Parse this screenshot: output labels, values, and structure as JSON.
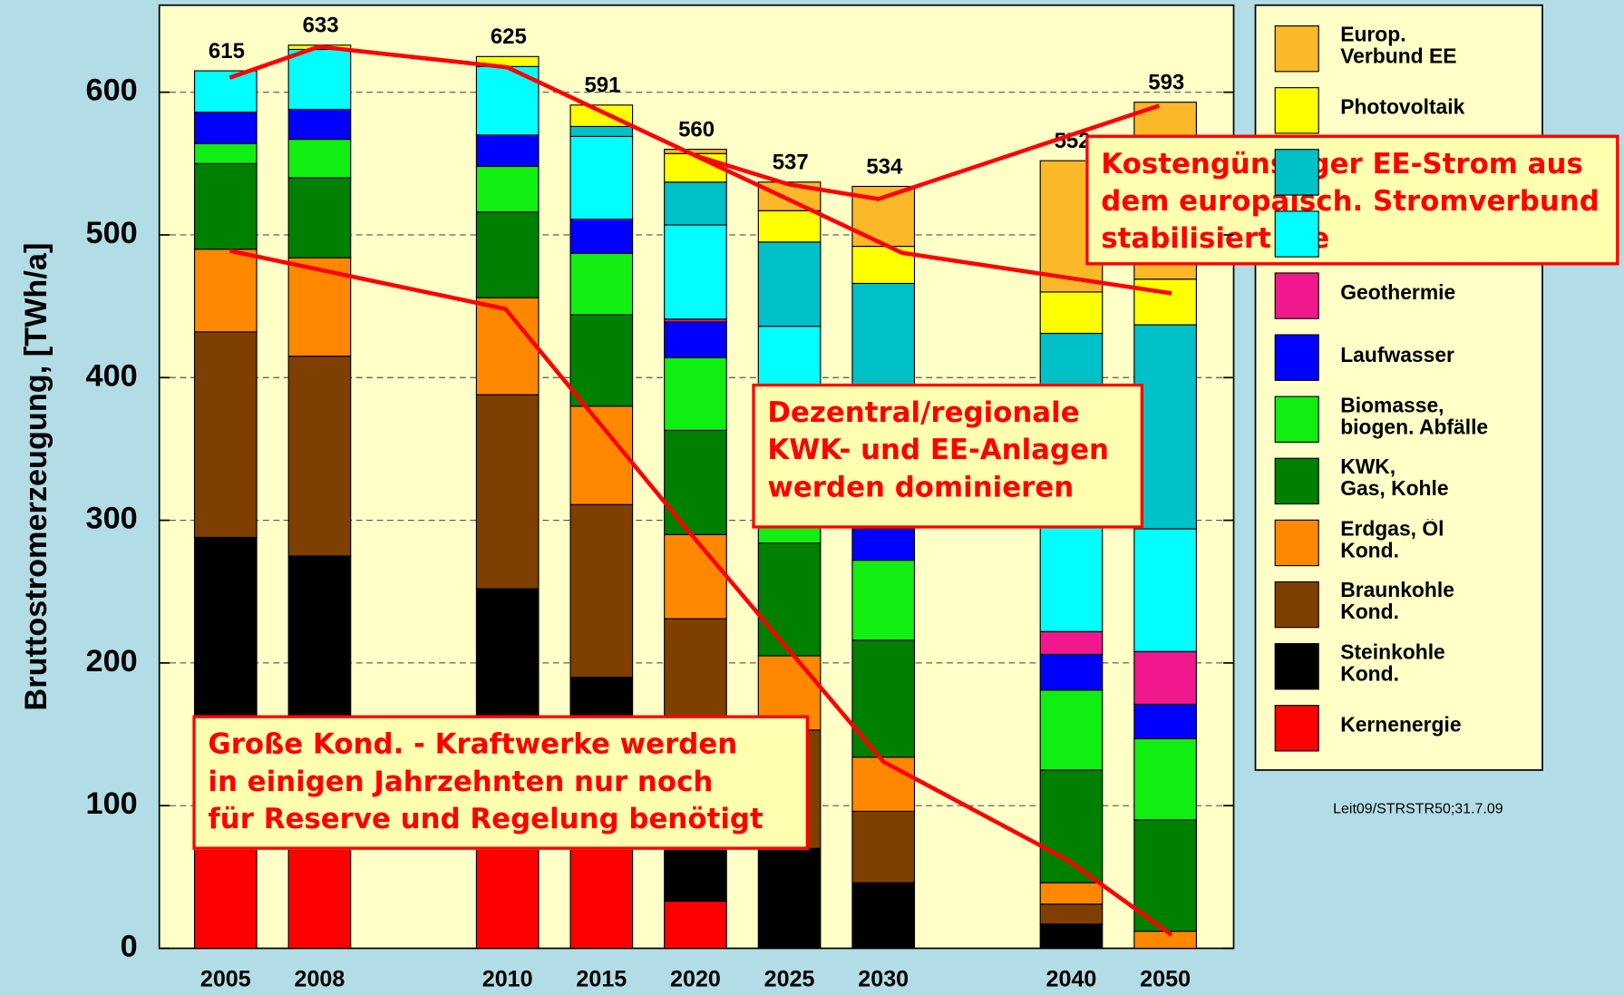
{
  "chart_data": {
    "type": "bar",
    "y_label": "Bruttostromerzeugung, [TWh/a]",
    "categories": [
      "2005",
      "2008",
      null,
      "2010",
      "2015",
      "2020",
      "2025",
      "2030",
      null,
      "2040",
      "2050"
    ],
    "totals": [
      615,
      633,
      null,
      625,
      591,
      560,
      537,
      534,
      null,
      552,
      593
    ],
    "ylim": [
      0,
      661
    ],
    "yticks": [
      0,
      100,
      200,
      300,
      400,
      500,
      600
    ],
    "grid": true,
    "series": [
      {
        "name": "Kernenergie",
        "color": "#ff0000",
        "values": [
          163,
          148,
          null,
          140,
          110,
          33,
          0,
          0,
          null,
          0,
          0
        ]
      },
      {
        "name": "Steinkohle\nKond.",
        "color": "#000000",
        "values": [
          125,
          127,
          null,
          112,
          80,
          107,
          70,
          46,
          null,
          17,
          0
        ]
      },
      {
        "name": "Braunkohle\nKond.",
        "color": "#7f3f00",
        "values": [
          144,
          140,
          null,
          136,
          121,
          91,
          83,
          50,
          null,
          14,
          0
        ]
      },
      {
        "name": "Erdgas, Öl\nKond.",
        "color": "#ff8800",
        "values": [
          58,
          69,
          null,
          68,
          69,
          59,
          52,
          38,
          null,
          15,
          12
        ]
      },
      {
        "name": "KWK,\nGas, Kohle",
        "color": "#008000",
        "values": [
          60,
          56,
          null,
          60,
          64,
          73,
          79,
          82,
          null,
          79,
          78
        ]
      },
      {
        "name": "Biomasse,\nbiogen. Abfälle",
        "color": "#11ee11",
        "values": [
          14,
          27,
          null,
          32,
          43,
          51,
          46,
          56,
          null,
          56,
          57
        ]
      },
      {
        "name": "Laufwasser",
        "color": "#0000ff",
        "values": [
          22,
          21,
          null,
          22,
          24,
          25,
          25,
          22,
          null,
          25,
          24
        ]
      },
      {
        "name": "Geothermie",
        "color": "#f0188c",
        "values": [
          0,
          0,
          null,
          0,
          0,
          2,
          5,
          8,
          null,
          16,
          37
        ]
      },
      {
        "color": "#00ffff",
        "values": [
          29,
          42,
          null,
          48,
          58,
          66,
          76,
          90,
          null,
          152,
          86
        ]
      },
      {
        "color": "#00c0c8",
        "values": [
          0,
          0,
          null,
          0,
          7,
          30,
          59,
          74,
          null,
          57,
          143
        ]
      },
      {
        "name": "Photovoltaik",
        "color": "#ffff00",
        "values": [
          0,
          3,
          null,
          7,
          15,
          20,
          22,
          26,
          null,
          29,
          32
        ]
      },
      {
        "name": "Europ.\nVerbund EE",
        "color": "#fbb829",
        "values": [
          0,
          0,
          null,
          0,
          0,
          3,
          20,
          42,
          null,
          92,
          124
        ]
      }
    ],
    "annotations": [
      "Kostengünstiger EE-Strom aus\ndem europäisch. Stromverbund\nstabilisiert die Stromversorgung",
      "Dezentral/regionale\nKWK- und EE-Anlagen\n werden dominieren",
      "Große Kond. - Kraftwerke werden\nin einigen Jahrzehnten nur noch\nfür Reserve und Regelung benötigt"
    ],
    "footnote": "Leit09/STRSTR50;31.7.09"
  }
}
